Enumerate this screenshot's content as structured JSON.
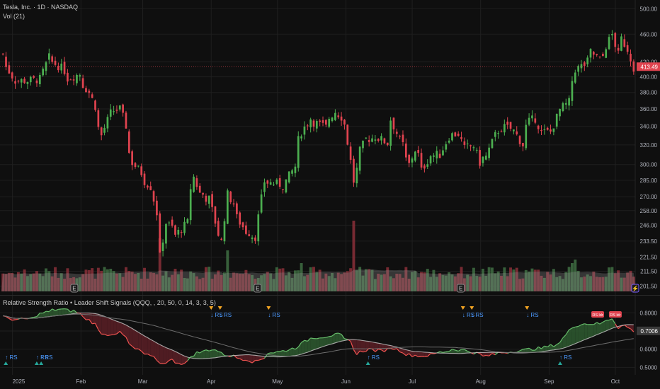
{
  "header": {
    "symbol_line": "Tesla, Inc. · 1D · NASDAQ",
    "volume_line": "Vol (21)",
    "indicator_line": "Relative Strength Ratio • Leader Shift Signals (QQQ, , 20, 50, 0, 14, 3, 3, 5)"
  },
  "colors": {
    "background": "#0f0f0f",
    "up": "#4caf50",
    "down": "#e0434f",
    "grid": "#1f1f1f",
    "ratio_up": "#66bb6a",
    "ratio_down": "#ef5350",
    "signal_up": "#4c9aff",
    "marker_down": "#f5a623",
    "marker_up": "#26a69a"
  },
  "chart_data": [
    {
      "type": "candlestick",
      "title": "Tesla, Inc. · 1D · NASDAQ",
      "y_ticks": [
        500.0,
        460.0,
        420.0,
        400.0,
        380.0,
        360.0,
        340.0,
        320.0,
        300.0,
        285.0,
        270.0,
        258.0,
        246.0,
        233.5,
        221.5,
        211.5,
        201.5
      ],
      "y_scale": "log",
      "ylim": [
        198,
        505
      ],
      "last_price": "413.49",
      "x_labels": [
        "2025",
        "Feb",
        "Mar",
        "Apr",
        "May",
        "Jun",
        "Jul",
        "Aug",
        "Sep",
        "Oct"
      ],
      "x_label_dates": [
        "2025-01-01",
        "2025-02-01",
        "2025-03-01",
        "2025-04-01",
        "2025-05-01",
        "2025-06-01",
        "2025-07-01",
        "2025-08-01",
        "2025-09-01",
        "2025-10-01"
      ],
      "date_range": [
        "2024-12-27",
        "2025-10-10"
      ],
      "close_anchors": [
        [
          "2024-12-27",
          431
        ],
        [
          "2025-01-02",
          395
        ],
        [
          "2025-01-08",
          395
        ],
        [
          "2025-01-14",
          397
        ],
        [
          "2025-01-17",
          426
        ],
        [
          "2025-01-22",
          415
        ],
        [
          "2025-01-27",
          398
        ],
        [
          "2025-01-31",
          404
        ],
        [
          "2025-02-05",
          380
        ],
        [
          "2025-02-11",
          330
        ],
        [
          "2025-02-14",
          355
        ],
        [
          "2025-02-19",
          360
        ],
        [
          "2025-02-25",
          302
        ],
        [
          "2025-02-28",
          292
        ],
        [
          "2025-03-05",
          279
        ],
        [
          "2025-03-10",
          222
        ],
        [
          "2025-03-12",
          248
        ],
        [
          "2025-03-17",
          238
        ],
        [
          "2025-03-21",
          248
        ],
        [
          "2025-03-25",
          288
        ],
        [
          "2025-03-27",
          273
        ],
        [
          "2025-04-01",
          268
        ],
        [
          "2025-04-04",
          239
        ],
        [
          "2025-04-07",
          233
        ],
        [
          "2025-04-09",
          272
        ],
        [
          "2025-04-14",
          252
        ],
        [
          "2025-04-17",
          241
        ],
        [
          "2025-04-22",
          237
        ],
        [
          "2025-04-25",
          284
        ],
        [
          "2025-04-30",
          282
        ],
        [
          "2025-05-05",
          280
        ],
        [
          "2025-05-09",
          298
        ],
        [
          "2025-05-13",
          334
        ],
        [
          "2025-05-16",
          349
        ],
        [
          "2025-05-21",
          342
        ],
        [
          "2025-05-23",
          339
        ],
        [
          "2025-05-28",
          357
        ],
        [
          "2025-06-02",
          342
        ],
        [
          "2025-06-05",
          284
        ],
        [
          "2025-06-06",
          295
        ],
        [
          "2025-06-11",
          326
        ],
        [
          "2025-06-16",
          329
        ],
        [
          "2025-06-20",
          322
        ],
        [
          "2025-06-23",
          348
        ],
        [
          "2025-06-26",
          325
        ],
        [
          "2025-07-01",
          300
        ],
        [
          "2025-07-03",
          315
        ],
        [
          "2025-07-07",
          294
        ],
        [
          "2025-07-10",
          309
        ],
        [
          "2025-07-15",
          310
        ],
        [
          "2025-07-18",
          329
        ],
        [
          "2025-07-23",
          332
        ],
        [
          "2025-07-25",
          316
        ],
        [
          "2025-07-30",
          319
        ],
        [
          "2025-08-01",
          302
        ],
        [
          "2025-08-05",
          308
        ],
        [
          "2025-08-08",
          330
        ],
        [
          "2025-08-13",
          339
        ],
        [
          "2025-08-18",
          335
        ],
        [
          "2025-08-21",
          320
        ],
        [
          "2025-08-22",
          340
        ],
        [
          "2025-08-27",
          349
        ],
        [
          "2025-08-29",
          333
        ],
        [
          "2025-09-03",
          334
        ],
        [
          "2025-09-05",
          350
        ],
        [
          "2025-09-11",
          368
        ],
        [
          "2025-09-12",
          395
        ],
        [
          "2025-09-15",
          410
        ],
        [
          "2025-09-18",
          416
        ],
        [
          "2025-09-22",
          434
        ],
        [
          "2025-09-25",
          423
        ],
        [
          "2025-09-29",
          443
        ],
        [
          "2025-10-01",
          459
        ],
        [
          "2025-10-03",
          430
        ],
        [
          "2025-10-06",
          453
        ],
        [
          "2025-10-08",
          438
        ],
        [
          "2025-10-10",
          413
        ]
      ],
      "volume": {
        "name": "Vol (21)",
        "base_level": 0.25,
        "spikes": [
          [
            "2025-03-10",
            0.75
          ],
          [
            "2025-04-09",
            0.58
          ],
          [
            "2025-06-05",
            1.0
          ],
          [
            "2025-05-13",
            0.4
          ],
          [
            "2025-09-15",
            0.45
          ],
          [
            "2025-09-12",
            0.4
          ]
        ]
      },
      "event_markers": [
        {
          "date": "2025-01-29",
          "symbol": "E"
        },
        {
          "date": "2025-04-22",
          "symbol": "E"
        },
        {
          "date": "2025-07-23",
          "symbol": "E"
        },
        {
          "date": "2025-10-10",
          "symbol": "⚡"
        }
      ]
    },
    {
      "type": "line",
      "title": "Relative Strength Ratio • Leader Shift Signals (QQQ, , 20, 50, 0, 14, 3, 3, 5)",
      "y_ticks": [
        0.8,
        0.7,
        0.6,
        0.5
      ],
      "ylim": [
        0.49,
        0.84
      ],
      "last_value": "0.7006",
      "ratio_anchors": [
        [
          "2024-12-27",
          0.78
        ],
        [
          "2025-01-03",
          0.76
        ],
        [
          "2025-01-10",
          0.77
        ],
        [
          "2025-01-15",
          0.8
        ],
        [
          "2025-01-22",
          0.82
        ],
        [
          "2025-01-29",
          0.81
        ],
        [
          "2025-02-05",
          0.76
        ],
        [
          "2025-02-12",
          0.68
        ],
        [
          "2025-02-19",
          0.69
        ],
        [
          "2025-02-26",
          0.6
        ],
        [
          "2025-03-05",
          0.56
        ],
        [
          "2025-03-10",
          0.52
        ],
        [
          "2025-03-14",
          0.54
        ],
        [
          "2025-03-20",
          0.52
        ],
        [
          "2025-03-26",
          0.58
        ],
        [
          "2025-04-02",
          0.6
        ],
        [
          "2025-04-08",
          0.57
        ],
        [
          "2025-04-15",
          0.55
        ],
        [
          "2025-04-22",
          0.53
        ],
        [
          "2025-04-28",
          0.58
        ],
        [
          "2025-05-05",
          0.59
        ],
        [
          "2025-05-12",
          0.62
        ],
        [
          "2025-05-16",
          0.66
        ],
        [
          "2025-05-23",
          0.67
        ],
        [
          "2025-05-29",
          0.68
        ],
        [
          "2025-06-04",
          0.64
        ],
        [
          "2025-06-06",
          0.57
        ],
        [
          "2025-06-12",
          0.6
        ],
        [
          "2025-06-18",
          0.59
        ],
        [
          "2025-06-23",
          0.61
        ],
        [
          "2025-06-30",
          0.57
        ],
        [
          "2025-07-07",
          0.56
        ],
        [
          "2025-07-14",
          0.58
        ],
        [
          "2025-07-21",
          0.6
        ],
        [
          "2025-07-28",
          0.59
        ],
        [
          "2025-08-04",
          0.56
        ],
        [
          "2025-08-11",
          0.58
        ],
        [
          "2025-08-18",
          0.59
        ],
        [
          "2025-08-25",
          0.6
        ],
        [
          "2025-09-01",
          0.61
        ],
        [
          "2025-09-08",
          0.64
        ],
        [
          "2025-09-12",
          0.72
        ],
        [
          "2025-09-18",
          0.74
        ],
        [
          "2025-09-25",
          0.74
        ],
        [
          "2025-10-01",
          0.77
        ],
        [
          "2025-10-03",
          0.72
        ],
        [
          "2025-10-07",
          0.73
        ],
        [
          "2025-10-10",
          0.7
        ]
      ],
      "signal_labels": [
        {
          "date": "2024-12-29",
          "text": "↑ RS",
          "dir": "up"
        },
        {
          "date": "2025-01-12",
          "text": "↑ RS",
          "dir": "up"
        },
        {
          "date": "2025-01-14",
          "text": "↑ RS",
          "dir": "up"
        },
        {
          "date": "2025-04-01",
          "text": "↓ RS",
          "dir": "down"
        },
        {
          "date": "2025-04-05",
          "text": "↓ RS",
          "dir": "down"
        },
        {
          "date": "2025-04-27",
          "text": "↓ RS",
          "dir": "down"
        },
        {
          "date": "2025-06-11",
          "text": "↑ RS",
          "dir": "up"
        },
        {
          "date": "2025-07-24",
          "text": "↓ RS",
          "dir": "down"
        },
        {
          "date": "2025-07-28",
          "text": "↓ RS",
          "dir": "down"
        },
        {
          "date": "2025-08-22",
          "text": "↓ RS",
          "dir": "down"
        },
        {
          "date": "2025-09-06",
          "text": "↑ RS",
          "dir": "up"
        }
      ],
      "badges": [
        {
          "date": "2025-09-23",
          "text": "RS ldr"
        },
        {
          "date": "2025-10-01",
          "text": "RS ldr"
        }
      ]
    }
  ]
}
